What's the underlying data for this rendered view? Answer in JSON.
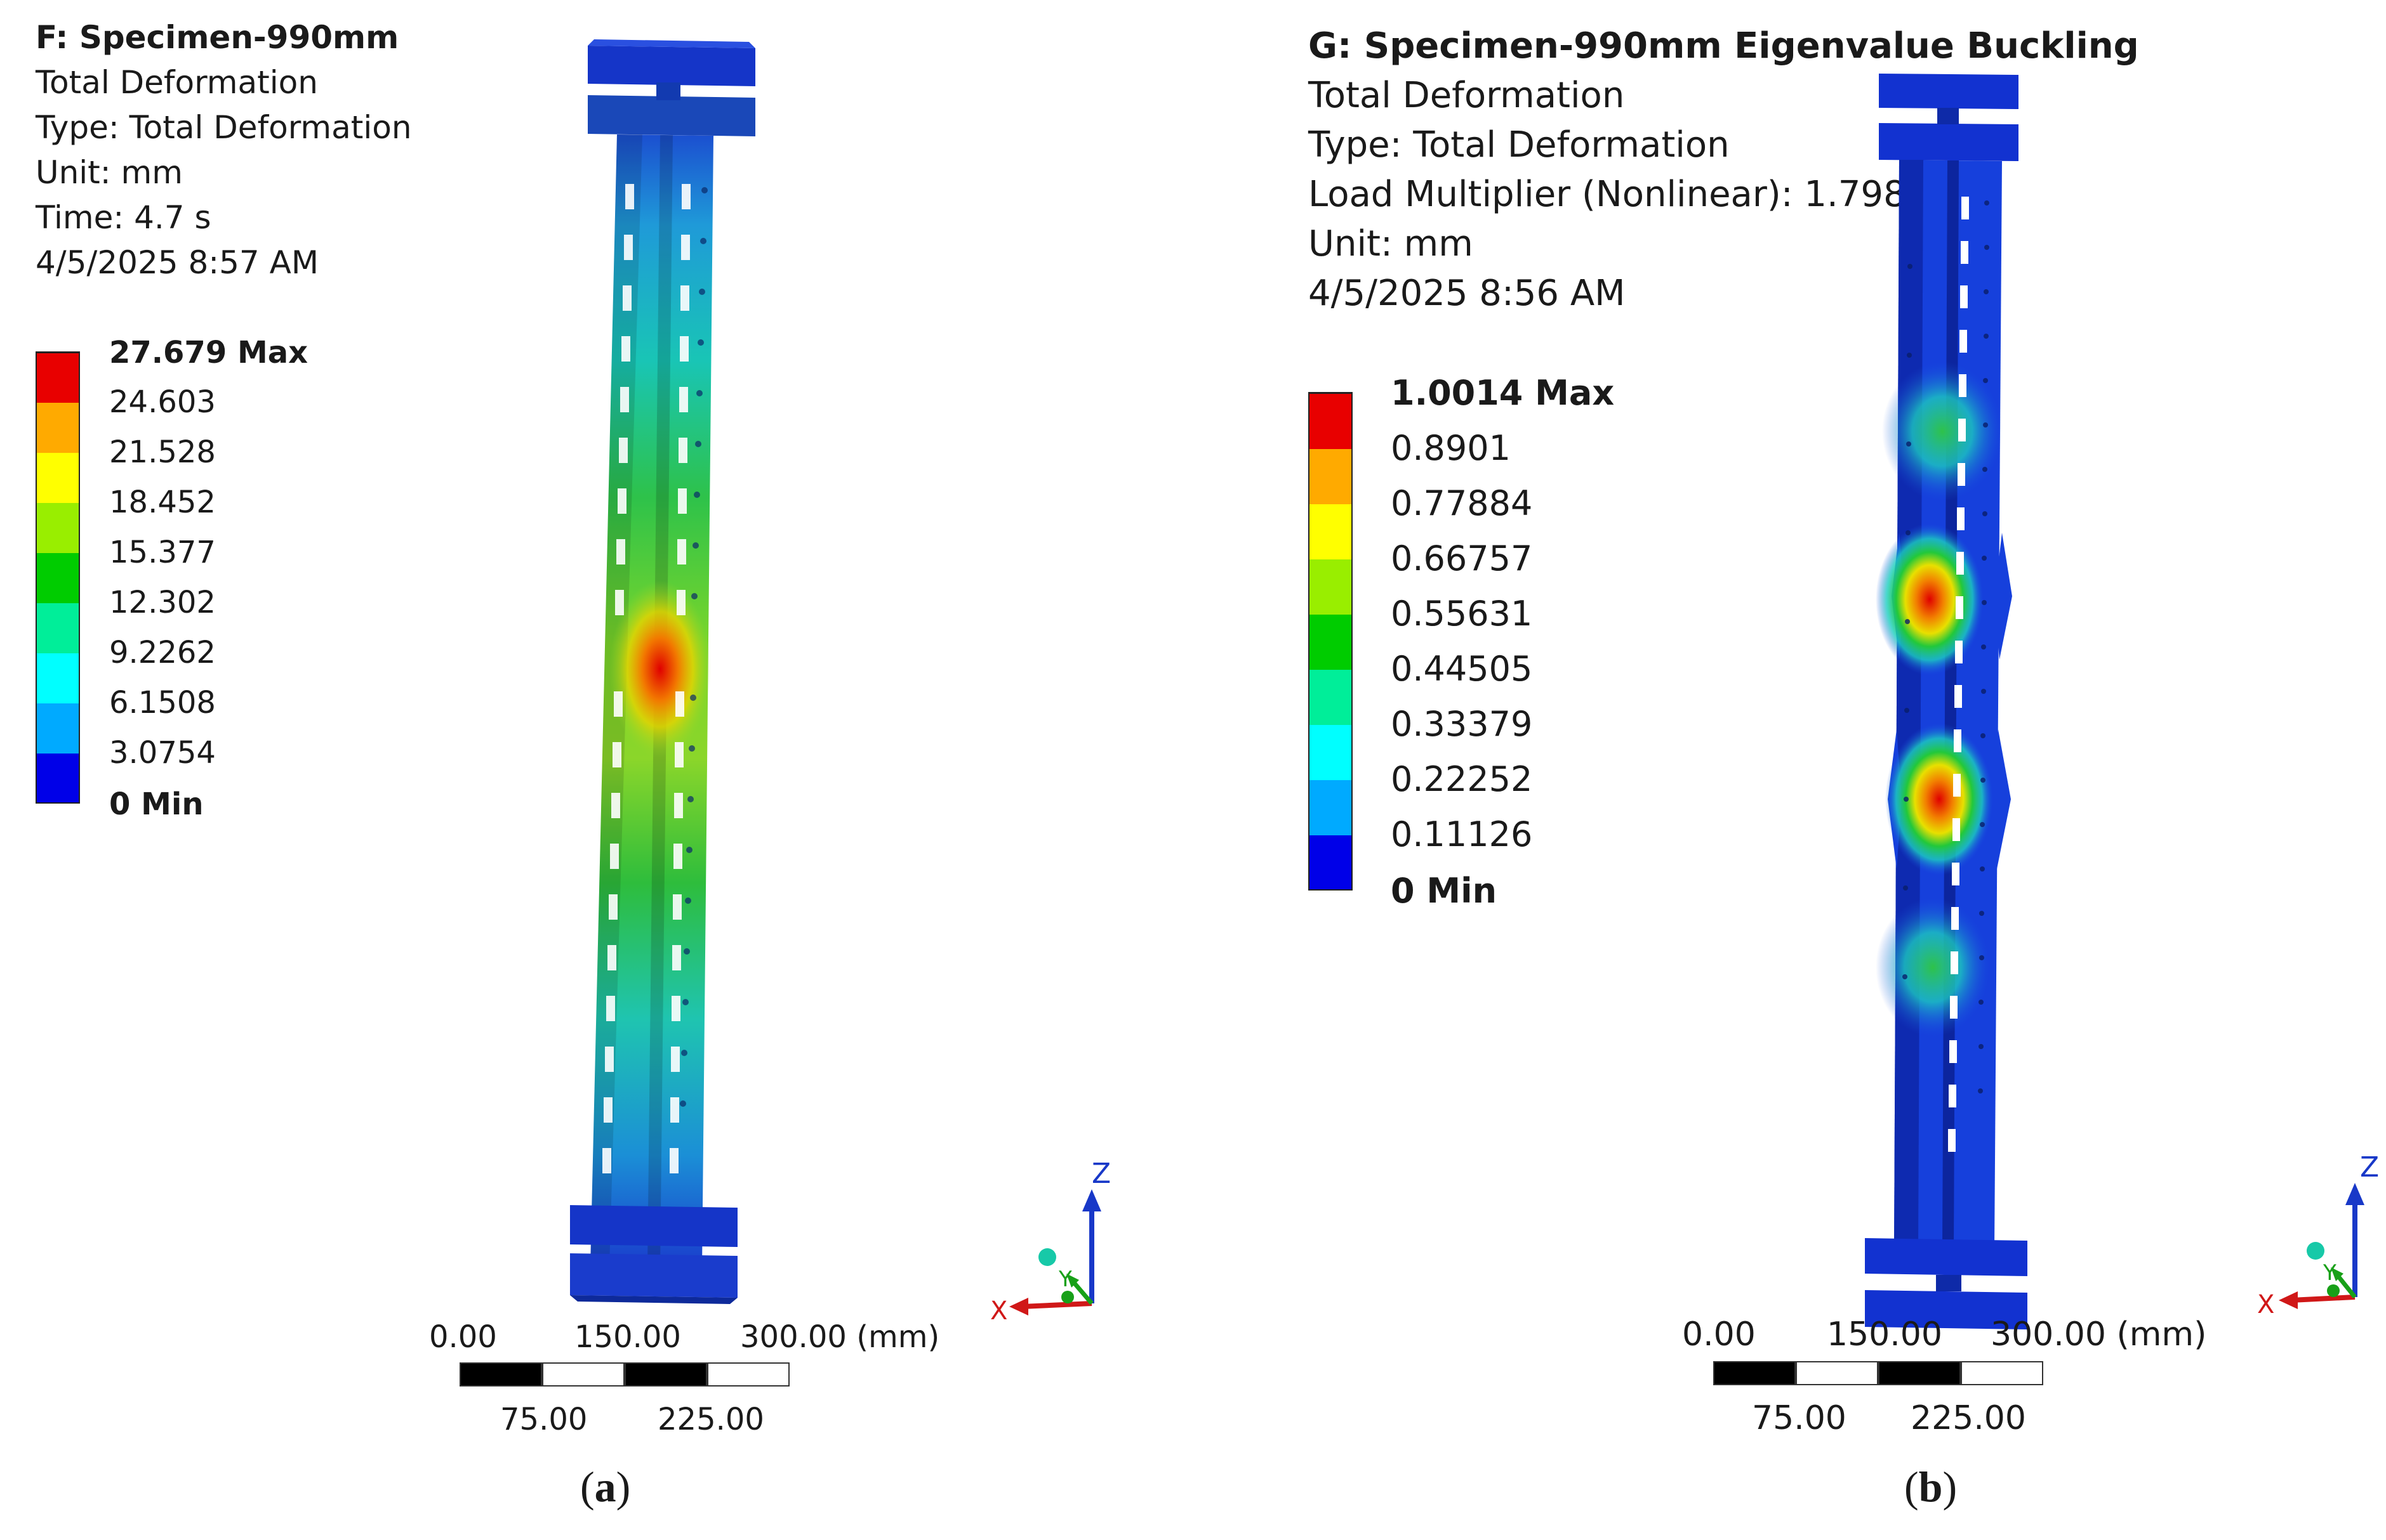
{
  "panels": [
    {
      "id": "a",
      "title": "F: Specimen-990mm",
      "lines": [
        "Total Deformation",
        "Type: Total Deformation",
        "Unit: mm",
        "Time: 4.7 s",
        "4/5/2025 8:57 AM"
      ],
      "legend": {
        "max_label": "27.679 Max",
        "values": [
          "24.603",
          "21.528",
          "18.452",
          "15.377",
          "12.302",
          "9.2262",
          "6.1508",
          "3.0754"
        ],
        "min_label": "0 Min"
      },
      "scale": {
        "top": [
          "0.00",
          "150.00",
          "300.00 (mm)"
        ],
        "bottom": [
          "75.00",
          "225.00"
        ]
      },
      "caption_letter": "a"
    },
    {
      "id": "b",
      "title": "G: Specimen-990mm Eigenvalue Buckling",
      "lines": [
        "Total Deformation",
        "Type: Total Deformation",
        "Load Multiplier (Nonlinear): 1.7985",
        "Unit: mm",
        "4/5/2025 8:56 AM"
      ],
      "legend": {
        "max_label": "1.0014 Max",
        "values": [
          "0.8901",
          "0.77884",
          "0.66757",
          "0.55631",
          "0.44505",
          "0.33379",
          "0.22252",
          "0.11126"
        ],
        "min_label": "0 Min"
      },
      "scale": {
        "top": [
          "0.00",
          "150.00",
          "300.00 (mm)"
        ],
        "bottom": [
          "75.00",
          "225.00"
        ]
      },
      "caption_letter": "b"
    }
  ],
  "legend_colors": [
    "#e80000",
    "#ffaa00",
    "#ffff00",
    "#99ee00",
    "#00cc00",
    "#00ee99",
    "#00ffff",
    "#00aaff",
    "#0000e8"
  ],
  "triad": {
    "z": "Z",
    "y": "Y",
    "x": "X"
  },
  "icons": [
    "coordinate-triad-icon"
  ]
}
